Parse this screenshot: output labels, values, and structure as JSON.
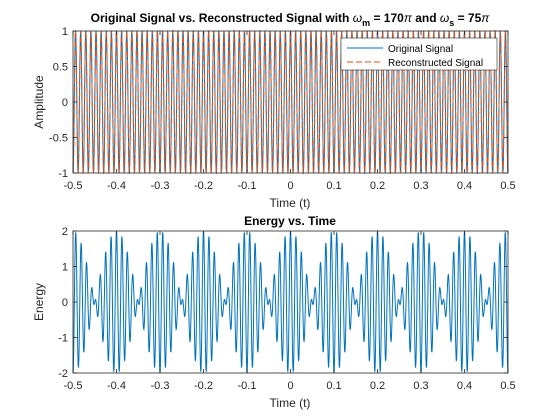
{
  "chart_data": [
    {
      "type": "line",
      "title_parts": {
        "prefix": "Original Signal vs. Reconstructed Signal with ",
        "omega": "ω",
        "sub_m": "m",
        "eq1": " = 170",
        "pi": "π",
        "and": " and ",
        "sub_s": "s",
        "eq2": " = 75"
      },
      "xlabel": "Time (t)",
      "ylabel": "Amplitude",
      "xlim": [
        -0.5,
        0.5
      ],
      "ylim": [
        -1,
        1
      ],
      "xticks": [
        -0.5,
        -0.4,
        -0.3,
        -0.2,
        -0.1,
        0,
        0.1,
        0.2,
        0.3,
        0.4,
        0.5
      ],
      "xtick_labels": [
        "-0.5",
        "-0.4",
        "-0.3",
        "-0.2",
        "-0.1",
        "0",
        "0.1",
        "0.2",
        "0.3",
        "0.4",
        "0.5"
      ],
      "yticks": [
        -1,
        -0.5,
        0,
        0.5,
        1
      ],
      "ytick_labels": [
        "-1",
        "-0.5",
        "0",
        "0.5",
        "1"
      ],
      "legend_position": "top-right",
      "series": [
        {
          "name": "Original Signal",
          "function": "cos(170*pi*t)",
          "color": "#0072BD",
          "style": "solid"
        },
        {
          "name": "Reconstructed Signal",
          "function": "cos(170*pi*t)",
          "color": "#D95319",
          "style": "dashed"
        }
      ]
    },
    {
      "type": "line",
      "title": "Energy vs. Time",
      "xlabel": "Time (t)",
      "ylabel": "Energy",
      "xlim": [
        -0.5,
        0.5
      ],
      "ylim": [
        -2,
        2
      ],
      "xticks": [
        -0.5,
        -0.4,
        -0.3,
        -0.2,
        -0.1,
        0,
        0.1,
        0.2,
        0.3,
        0.4,
        0.5
      ],
      "xtick_labels": [
        "-0.5",
        "-0.4",
        "-0.3",
        "-0.2",
        "-0.1",
        "0",
        "0.1",
        "0.2",
        "0.3",
        "0.4",
        "0.5"
      ],
      "yticks": [
        -2,
        -1,
        0,
        1,
        2
      ],
      "ytick_labels": [
        "-2",
        "-1",
        "0",
        "1",
        "2"
      ],
      "series": [
        {
          "function": "cos(170*pi*t) + cos(150*pi*t)",
          "color": "#0072BD",
          "style": "solid"
        }
      ]
    }
  ]
}
